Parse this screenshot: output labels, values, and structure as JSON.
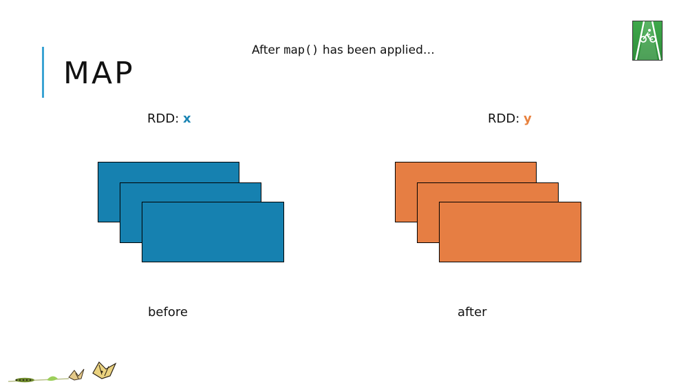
{
  "slide": {
    "title": "MAP",
    "subtitle_prefix": "After ",
    "subtitle_code": "map()",
    "subtitle_suffix": " has been applied…"
  },
  "left": {
    "rdd_prefix": "RDD: ",
    "rdd_var": "x",
    "caption": "before",
    "color": "#1681b0"
  },
  "right": {
    "rdd_prefix": "RDD: ",
    "rdd_var": "y",
    "caption": "after",
    "color": "#e67e43"
  },
  "colors": {
    "accent_bar": "#3aa3d3",
    "var_x": "#1a84b3",
    "var_y": "#e8823f",
    "logo_green": "#3ea84a"
  },
  "icons": {
    "logo": "bike-lane-icon",
    "decoration": "butterfly-lifecycle-icon"
  }
}
